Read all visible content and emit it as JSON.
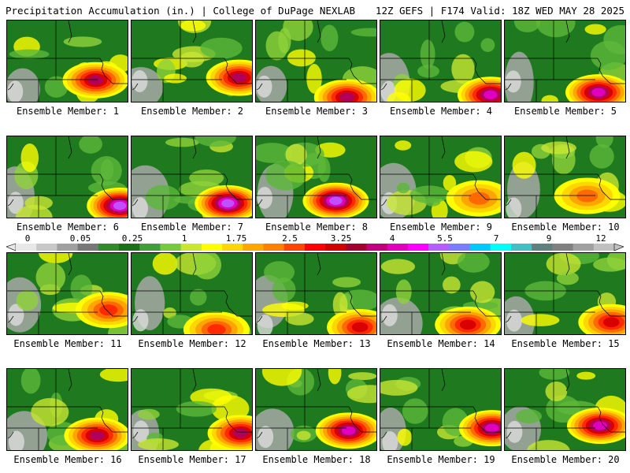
{
  "header": {
    "left_title": "Precipitation Accumulation (in.) | College of DuPage NEXLAB",
    "right_title": "12Z GEFS | F174 Valid: 18Z WED MAY 28 2025"
  },
  "members": [
    {
      "label": "Ensemble Member: 1"
    },
    {
      "label": "Ensemble Member: 2"
    },
    {
      "label": "Ensemble Member: 3"
    },
    {
      "label": "Ensemble Member: 4"
    },
    {
      "label": "Ensemble Member: 5"
    },
    {
      "label": "Ensemble Member: 6"
    },
    {
      "label": "Ensemble Member: 7"
    },
    {
      "label": "Ensemble Member: 8"
    },
    {
      "label": "Ensemble Member: 9"
    },
    {
      "label": "Ensemble Member: 10"
    },
    {
      "label": "Ensemble Member: 11"
    },
    {
      "label": "Ensemble Member: 12"
    },
    {
      "label": "Ensemble Member: 13"
    },
    {
      "label": "Ensemble Member: 14"
    },
    {
      "label": "Ensemble Member: 15"
    },
    {
      "label": "Ensemble Member: 16"
    },
    {
      "label": "Ensemble Member: 17"
    },
    {
      "label": "Ensemble Member: 18"
    },
    {
      "label": "Ensemble Member: 19"
    },
    {
      "label": "Ensemble Member: 20"
    }
  ],
  "colorbar": {
    "tick_labels": [
      "0",
      "0.05",
      "0.25",
      "1",
      "1.75",
      "2.5",
      "3.25",
      "4",
      "5.5",
      "7",
      "9",
      "12"
    ],
    "colors": [
      "#e8e8e8",
      "#c8c8c8",
      "#a0a0a0",
      "#787878",
      "#2e8b2e",
      "#1f6e1f",
      "#3ca03c",
      "#7cc83c",
      "#c8e632",
      "#ffff00",
      "#ffd700",
      "#ffa500",
      "#ff7f00",
      "#ff4500",
      "#ff0000",
      "#d00000",
      "#a00030",
      "#c0007a",
      "#e000c0",
      "#ff00ff",
      "#b060ff",
      "#7c7cff",
      "#00c8ff",
      "#00ffff",
      "#40c0c0",
      "#608080",
      "#808080",
      "#a0a0a0",
      "#c0c0c0"
    ]
  }
}
